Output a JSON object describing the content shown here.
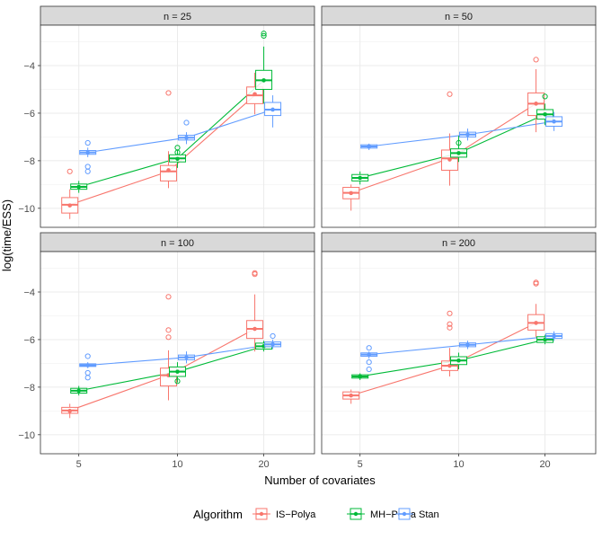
{
  "chart_data": {
    "type": "boxplot",
    "xlabel": "Number of covariates",
    "ylabel": "log(time/ESS)",
    "x_categories": [
      "5",
      "10",
      "20"
    ],
    "y_ticks": [
      -10,
      -8,
      -6,
      -4
    ],
    "ylim": [
      -10.8,
      -2.3
    ],
    "grid": true,
    "legend_position": "bottom",
    "legend_title": "Algorithm",
    "series": [
      {
        "name": "IS−Polya",
        "color": "#F8766D"
      },
      {
        "name": "MH−Polya",
        "color": "#00BA38"
      },
      {
        "name": "Stan",
        "color": "#619CFF"
      }
    ],
    "panels": [
      {
        "label": "n = 25",
        "boxes": [
          {
            "series": 0,
            "x": 0,
            "q1": -10.2,
            "median": -9.85,
            "q3": -9.55,
            "wlo": -10.45,
            "whi": -9.2,
            "mean": -9.88,
            "outliers": [
              -8.45
            ]
          },
          {
            "series": 0,
            "x": 1,
            "q1": -8.85,
            "median": -8.45,
            "q3": -8.2,
            "wlo": -9.15,
            "whi": -7.6,
            "mean": -8.4,
            "outliers": [
              -5.15
            ]
          },
          {
            "series": 0,
            "x": 2,
            "q1": -5.6,
            "median": -5.25,
            "q3": -4.9,
            "wlo": -6.05,
            "whi": -4.3,
            "mean": -5.2,
            "outliers": []
          },
          {
            "series": 1,
            "x": 0,
            "q1": -9.2,
            "median": -9.1,
            "q3": -8.98,
            "wlo": -9.35,
            "whi": -8.85,
            "mean": -9.1,
            "outliers": []
          },
          {
            "series": 1,
            "x": 1,
            "q1": -8.05,
            "median": -7.9,
            "q3": -7.75,
            "wlo": -8.3,
            "whi": -7.55,
            "mean": -7.92,
            "outliers": [
              -7.45,
              -7.65
            ]
          },
          {
            "series": 1,
            "x": 2,
            "q1": -5.0,
            "median": -4.62,
            "q3": -4.2,
            "wlo": -5.6,
            "whi": -3.2,
            "mean": -4.62,
            "outliers": [
              -2.65,
              -2.75
            ]
          },
          {
            "series": 2,
            "x": 0,
            "q1": -7.73,
            "median": -7.65,
            "q3": -7.57,
            "wlo": -7.85,
            "whi": -7.45,
            "mean": -7.65,
            "outliers": [
              -7.25,
              -8.25,
              -8.45
            ]
          },
          {
            "series": 2,
            "x": 1,
            "q1": -7.13,
            "median": -7.03,
            "q3": -6.93,
            "wlo": -7.3,
            "whi": -6.8,
            "mean": -7.03,
            "outliers": [
              -6.4
            ]
          },
          {
            "series": 2,
            "x": 2,
            "q1": -6.1,
            "median": -5.85,
            "q3": -5.55,
            "wlo": -6.6,
            "whi": -5.25,
            "mean": -5.85,
            "outliers": []
          }
        ]
      },
      {
        "label": "n = 50",
        "boxes": [
          {
            "series": 0,
            "x": 0,
            "q1": -9.6,
            "median": -9.35,
            "q3": -9.12,
            "wlo": -10.1,
            "whi": -9.0,
            "mean": -9.36,
            "outliers": []
          },
          {
            "series": 0,
            "x": 1,
            "q1": -8.4,
            "median": -7.9,
            "q3": -7.55,
            "wlo": -9.05,
            "whi": -6.85,
            "mean": -7.95,
            "outliers": [
              -5.2
            ]
          },
          {
            "series": 0,
            "x": 2,
            "q1": -6.1,
            "median": -5.6,
            "q3": -5.15,
            "wlo": -6.8,
            "whi": -4.15,
            "mean": -5.6,
            "outliers": [
              -3.75
            ]
          },
          {
            "series": 1,
            "x": 0,
            "q1": -8.85,
            "median": -8.72,
            "q3": -8.58,
            "wlo": -9.0,
            "whi": -8.45,
            "mean": -8.72,
            "outliers": []
          },
          {
            "series": 1,
            "x": 1,
            "q1": -7.85,
            "median": -7.68,
            "q3": -7.5,
            "wlo": -8.05,
            "whi": -6.95,
            "mean": -7.68,
            "outliers": [
              -7.25
            ]
          },
          {
            "series": 1,
            "x": 2,
            "q1": -6.25,
            "median": -6.05,
            "q3": -5.85,
            "wlo": -6.5,
            "whi": -5.6,
            "mean": -6.05,
            "outliers": [
              -5.3
            ]
          },
          {
            "series": 2,
            "x": 0,
            "q1": -7.47,
            "median": -7.4,
            "q3": -7.33,
            "wlo": -7.55,
            "whi": -7.28,
            "mean": -7.4,
            "outliers": []
          },
          {
            "series": 2,
            "x": 1,
            "q1": -7.0,
            "median": -6.9,
            "q3": -6.8,
            "wlo": -7.15,
            "whi": -6.65,
            "mean": -6.9,
            "outliers": []
          },
          {
            "series": 2,
            "x": 2,
            "q1": -6.55,
            "median": -6.35,
            "q3": -6.15,
            "wlo": -6.75,
            "whi": -5.95,
            "mean": -6.35,
            "outliers": []
          }
        ]
      },
      {
        "label": "n = 100",
        "boxes": [
          {
            "series": 0,
            "x": 0,
            "q1": -9.1,
            "median": -8.98,
            "q3": -8.85,
            "wlo": -9.3,
            "whi": -8.7,
            "mean": -9.0,
            "outliers": []
          },
          {
            "series": 0,
            "x": 1,
            "q1": -7.95,
            "median": -7.5,
            "q3": -7.2,
            "wlo": -8.55,
            "whi": -6.45,
            "mean": -7.5,
            "outliers": [
              -4.2,
              -5.6,
              -5.9
            ]
          },
          {
            "series": 0,
            "x": 2,
            "q1": -5.95,
            "median": -5.55,
            "q3": -5.2,
            "wlo": -6.5,
            "whi": -4.1,
            "mean": -5.55,
            "outliers": [
              -3.2,
              -3.25
            ]
          },
          {
            "series": 1,
            "x": 0,
            "q1": -8.25,
            "median": -8.15,
            "q3": -8.05,
            "wlo": -8.35,
            "whi": -7.95,
            "mean": -8.15,
            "outliers": []
          },
          {
            "series": 1,
            "x": 1,
            "q1": -7.55,
            "median": -7.35,
            "q3": -7.15,
            "wlo": -7.8,
            "whi": -6.95,
            "mean": -7.35,
            "outliers": [
              -7.75
            ]
          },
          {
            "series": 1,
            "x": 2,
            "q1": -6.4,
            "median": -6.28,
            "q3": -6.15,
            "wlo": -6.5,
            "whi": -6.05,
            "mean": -6.28,
            "outliers": []
          },
          {
            "series": 2,
            "x": 0,
            "q1": -7.13,
            "median": -7.08,
            "q3": -7.02,
            "wlo": -7.2,
            "whi": -6.95,
            "mean": -7.08,
            "outliers": [
              -6.7,
              -7.4,
              -7.6
            ]
          },
          {
            "series": 2,
            "x": 1,
            "q1": -6.85,
            "median": -6.75,
            "q3": -6.65,
            "wlo": -7.0,
            "whi": -6.5,
            "mean": -6.75,
            "outliers": []
          },
          {
            "series": 2,
            "x": 2,
            "q1": -6.3,
            "median": -6.2,
            "q3": -6.1,
            "wlo": -6.4,
            "whi": -6.0,
            "mean": -6.2,
            "outliers": [
              -5.85
            ]
          }
        ]
      },
      {
        "label": "n = 200",
        "boxes": [
          {
            "series": 0,
            "x": 0,
            "q1": -8.5,
            "median": -8.35,
            "q3": -8.2,
            "wlo": -8.7,
            "whi": -8.1,
            "mean": -8.35,
            "outliers": []
          },
          {
            "series": 0,
            "x": 1,
            "q1": -7.3,
            "median": -7.1,
            "q3": -6.9,
            "wlo": -7.55,
            "whi": -6.35,
            "mean": -7.1,
            "outliers": [
              -4.9,
              -5.35,
              -5.5
            ]
          },
          {
            "series": 0,
            "x": 2,
            "q1": -5.6,
            "median": -5.3,
            "q3": -4.95,
            "wlo": -5.9,
            "whi": -4.5,
            "mean": -5.3,
            "outliers": [
              -3.6,
              -3.65
            ]
          },
          {
            "series": 1,
            "x": 0,
            "q1": -7.62,
            "median": -7.55,
            "q3": -7.48,
            "wlo": -7.7,
            "whi": -7.42,
            "mean": -7.55,
            "outliers": []
          },
          {
            "series": 1,
            "x": 1,
            "q1": -7.05,
            "median": -6.88,
            "q3": -6.72,
            "wlo": -7.25,
            "whi": -6.55,
            "mean": -6.88,
            "outliers": []
          },
          {
            "series": 1,
            "x": 2,
            "q1": -6.12,
            "median": -6.0,
            "q3": -5.88,
            "wlo": -6.2,
            "whi": -5.8,
            "mean": -6.0,
            "outliers": []
          },
          {
            "series": 2,
            "x": 0,
            "q1": -6.7,
            "median": -6.63,
            "q3": -6.56,
            "wlo": -6.8,
            "whi": -6.5,
            "mean": -6.63,
            "outliers": [
              -6.35,
              -6.95,
              -7.25
            ]
          },
          {
            "series": 2,
            "x": 1,
            "q1": -6.3,
            "median": -6.22,
            "q3": -6.14,
            "wlo": -6.4,
            "whi": -6.05,
            "mean": -6.22,
            "outliers": []
          },
          {
            "series": 2,
            "x": 2,
            "q1": -5.95,
            "median": -5.85,
            "q3": -5.75,
            "wlo": -6.05,
            "whi": -5.65,
            "mean": -5.85,
            "outliers": []
          }
        ]
      }
    ]
  }
}
